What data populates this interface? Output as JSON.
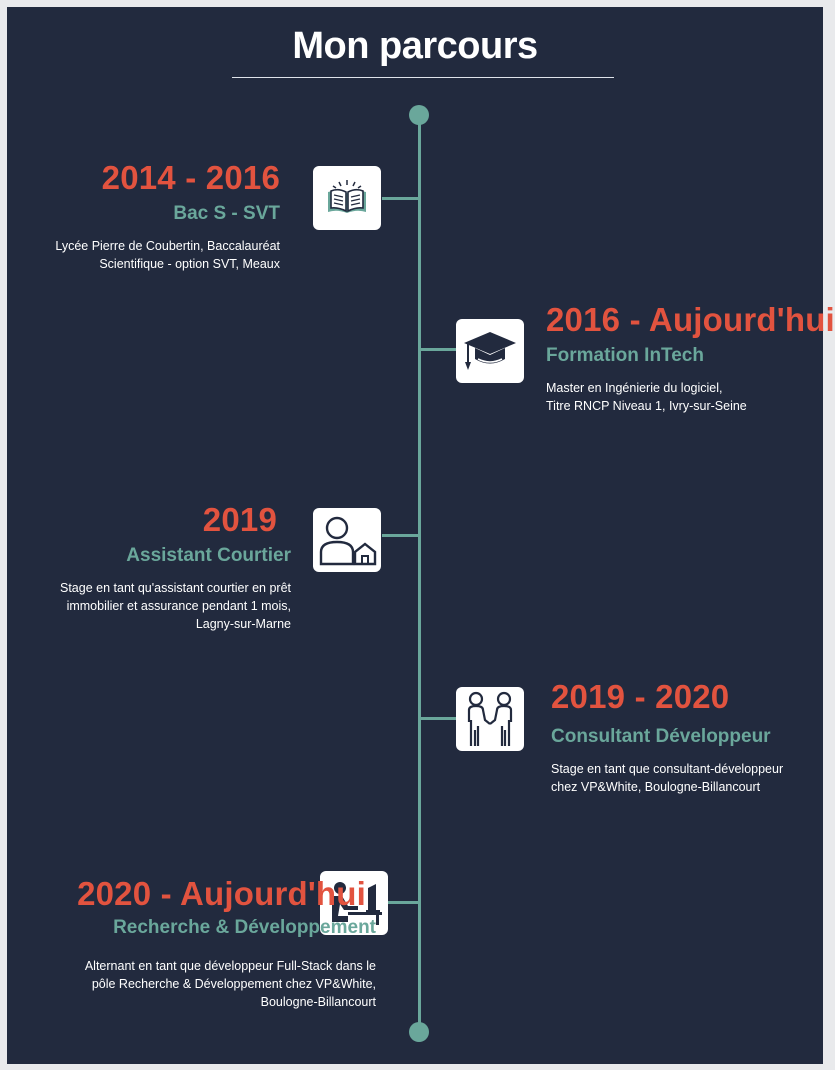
{
  "page": {
    "title": "Mon parcours"
  },
  "entries": [
    {
      "years": "2014 - 2016",
      "role": "Bac S - SVT",
      "desc_lines": [
        "Lycée Pierre de Coubertin, Baccalauréat",
        "Scientifique - option SVT, Meaux"
      ],
      "icon": "open-book-icon"
    },
    {
      "years": "2016 - Aujourd'hui",
      "role": "Formation InTech",
      "desc_lines": [
        "Master en Ingénierie du logiciel,",
        "Titre RNCP Niveau 1, Ivry-sur-Seine"
      ],
      "icon": "graduation-cap-icon"
    },
    {
      "years": "2019",
      "role": "Assistant Courtier",
      "desc_lines": [
        "Stage en tant qu'assistant courtier en prêt",
        "immobilier et assurance pendant 1 mois,",
        "Lagny-sur-Marne"
      ],
      "icon": "person-house-icon"
    },
    {
      "years": "2019 - 2020",
      "role": "Consultant Développeur",
      "desc_lines": [
        "Stage en tant que consultant-développeur",
        "chez VP&White, Boulogne-Billancourt"
      ],
      "icon": "handshake-icon"
    },
    {
      "years": "2020 - Aujourd'hui",
      "role": "Recherche & Développement",
      "desc_lines": [
        "Alternant en tant que développeur Full-Stack dans le",
        "pôle Recherche & Développement chez VP&White,",
        "Boulogne-Billancourt"
      ],
      "icon": "developer-desk-icon"
    }
  ],
  "colors": {
    "background": "#222a3e",
    "accent": "#e2533f",
    "teal": "#6aa79b",
    "text": "#ffffff"
  }
}
